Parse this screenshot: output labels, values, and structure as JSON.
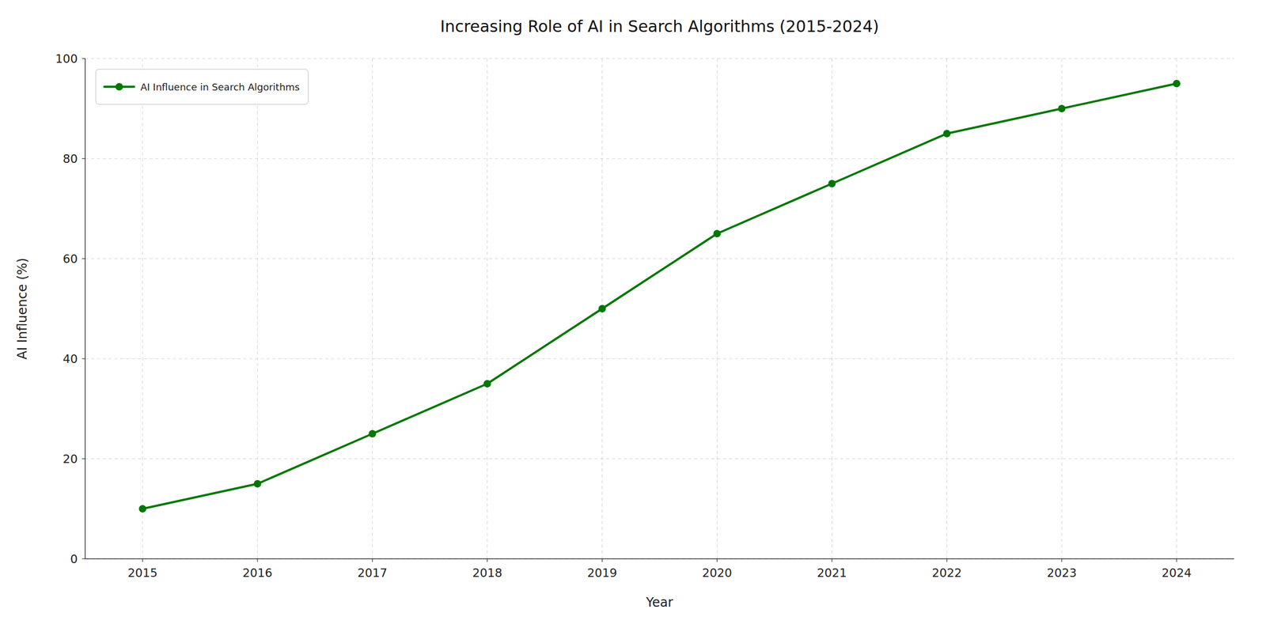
{
  "chart_data": {
    "type": "line",
    "title": "Increasing Role of AI in Search Algorithms (2015-2024)",
    "xlabel": "Year",
    "ylabel": "AI Influence (%)",
    "x": [
      2015,
      2016,
      2017,
      2018,
      2019,
      2020,
      2021,
      2022,
      2023,
      2024
    ],
    "series": [
      {
        "name": "AI Influence in Search Algorithms",
        "color": "#007700",
        "marker": "circle",
        "values": [
          10,
          15,
          25,
          35,
          50,
          65,
          75,
          85,
          90,
          95
        ]
      }
    ],
    "xlim": [
      2014.5,
      2024.5
    ],
    "xticks": [
      2015,
      2016,
      2017,
      2018,
      2019,
      2020,
      2021,
      2022,
      2023,
      2024
    ],
    "ylim": [
      0,
      100
    ],
    "yticks": [
      0,
      20,
      40,
      60,
      80,
      100
    ],
    "grid": true,
    "legend": "upper left"
  }
}
